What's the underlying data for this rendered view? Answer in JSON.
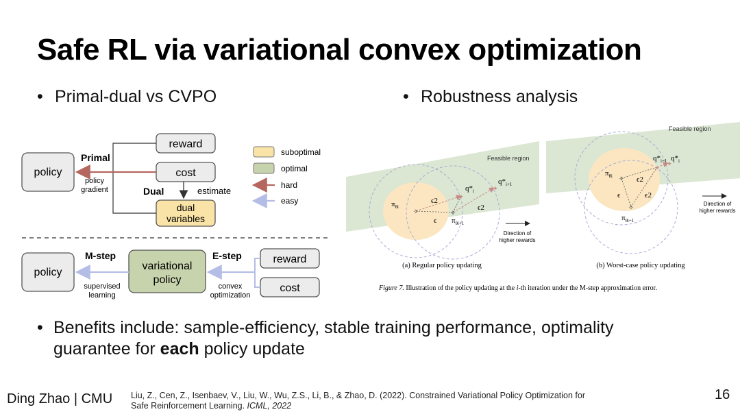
{
  "slide": {
    "title": "Safe RL via variational convex optimization",
    "bullet_left": "Primal-dual vs CVPO",
    "bullet_right": "Robustness analysis",
    "benefits_line1": "Benefits include: sample-efficiency, stable training performance, optimality",
    "benefits_line2_pre": "guarantee for ",
    "benefits_line2_bold": "each",
    "benefits_line2_post": " policy update",
    "footer_author": "Ding Zhao | CMU",
    "reference_line1": "Liu, Z., Cen, Z., Isenbaev, V., Liu, W., Wu, Z.S., Li, B., & Zhao, D. (2022). Constrained Variational Policy Optimization for",
    "reference_line2_pre": "Safe Reinforcement Learning. ",
    "reference_line2_italic": "ICML, 2022",
    "page_number": "16"
  },
  "diagram_left": {
    "top": {
      "policy": "policy",
      "reward": "reward",
      "cost": "cost",
      "dual_line1": "dual",
      "dual_line2": "variables",
      "primal": "Primal",
      "policy_gradient_1": "policy",
      "policy_gradient_2": "gradient",
      "dual": "Dual",
      "estimate": "estimate"
    },
    "bottom": {
      "policy": "policy",
      "variational_1": "variational",
      "variational_2": "policy",
      "reward": "reward",
      "cost": "cost",
      "m_step": "M-step",
      "e_step": "E-step",
      "supervised_1": "supervised",
      "supervised_2": "learning",
      "convex_1": "convex",
      "convex_2": "optimization"
    },
    "legend": {
      "suboptimal": "suboptimal",
      "optimal": "optimal",
      "hard": "hard",
      "easy": "easy"
    },
    "colors": {
      "suboptimal": "#f9e3a7",
      "optimal": "#c7d3ad",
      "hard": "#b5665f",
      "easy": "#b3bde6",
      "box_fill": "#ececec"
    }
  },
  "figure7": {
    "panel_a": {
      "feasible": "Feasible region",
      "pi": "π",
      "pi_sub": "θi",
      "pi_next_sub": "θi+1",
      "eps": "ϵ",
      "eps2": "ϵ2",
      "q_star": "q*",
      "q_star_sub": "i",
      "q_next_sub": "i+1",
      "direction_1": "Direction of",
      "direction_2": "higher rewards",
      "caption": "(a) Regular policy updating"
    },
    "panel_b": {
      "feasible": "Feasible region",
      "pi": "π",
      "pi_sub": "θi",
      "pi_next_sub": "θi+1",
      "eps": "ϵ",
      "eps2": "ϵ2",
      "q_star": "q*",
      "q_star_sub": "i",
      "q_next_sub": "i+1",
      "direction_1": "Direction of",
      "direction_2": "higher rewards",
      "caption": "(b) Worst-case policy updating"
    },
    "caption_label": "Figure 7.",
    "caption_pre": " Illustration of the policy updating at the ",
    "caption_i": "i",
    "caption_post": "-th iteration under the M-step approximation error.",
    "colors": {
      "feasible": "#dbe6d3",
      "ellipse": "#fbe6c1",
      "circle": "#a7acd6",
      "arrow": "#c98a84"
    }
  }
}
